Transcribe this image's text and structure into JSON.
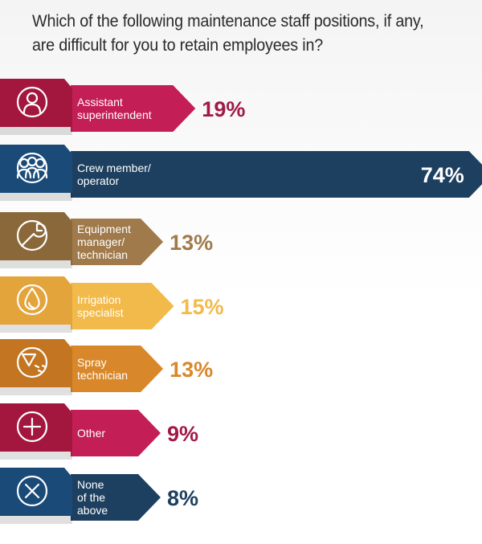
{
  "title": "Which of the following maintenance staff positions, if any, are difficult for you to retain employees in?",
  "chart_data": {
    "type": "bar",
    "orientation": "horizontal",
    "title": "Which of the following maintenance staff positions, if any, are difficult for you to retain employees in?",
    "unit": "%",
    "xlim": [
      0,
      100
    ],
    "categories": [
      "Assistant superintendent",
      "Crew member/ operator",
      "Equipment manager/ technician",
      "Irrigation specialist",
      "Spray technician",
      "Other",
      "None of the above"
    ],
    "label_lines": [
      [
        "Assistant",
        "superintendent"
      ],
      [
        "Crew member/",
        "operator"
      ],
      [
        "Equipment",
        "manager/",
        "technician"
      ],
      [
        "Irrigation",
        "specialist"
      ],
      [
        "Spray",
        "technician"
      ],
      [
        "Other"
      ],
      [
        "None",
        "of the",
        "above"
      ]
    ],
    "values": [
      19,
      74,
      13,
      15,
      13,
      9,
      8
    ],
    "value_labels": [
      "19%",
      "74%",
      "13%",
      "15%",
      "13%",
      "9%",
      "8%"
    ],
    "icons": [
      "person-icon",
      "group-icon",
      "wrench-icon",
      "water-drop-icon",
      "spray-nozzle-icon",
      "plus-circle-icon",
      "x-circle-icon"
    ],
    "colors": [
      "#c41e56",
      "#1e4060",
      "#a07a4a",
      "#f2ba4a",
      "#d8882a",
      "#c41e56",
      "#1e4060"
    ],
    "icon_colors": [
      "#a3173f",
      "#1a4a78",
      "#8a683a",
      "#e3a43c",
      "#c37521",
      "#a3173f",
      "#1a4a78"
    ],
    "value_label_colors": [
      "#a01a45",
      "#ffffff",
      "#a07a4a",
      "#f2ba4a",
      "#d8882a",
      "#a01a45",
      "#1e4060"
    ]
  }
}
